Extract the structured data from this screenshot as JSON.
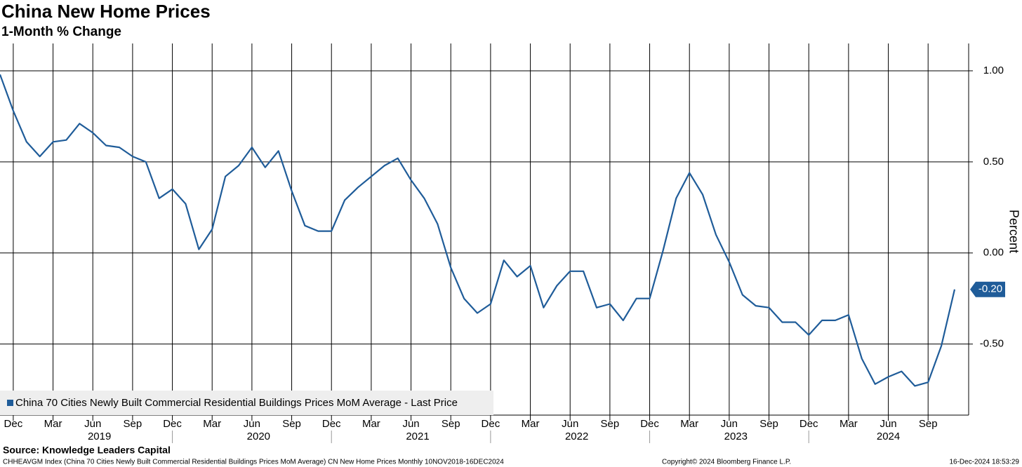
{
  "chart_data": {
    "type": "line",
    "title": "China New Home Prices",
    "subtitle": "1-Month % Change",
    "y_axis_label": "Percent",
    "source": "Source: Knowledge Leaders Capital",
    "footer_left": "CHHEAVGM Index (China 70 Cities Newly Built Commercial Residential Buildings Prices MoM Average) CN New Home Prices  Monthly 10NOV2018-16DEC2024",
    "footer_center": "Copyright© 2024 Bloomberg Finance L.P.",
    "footer_right": "16-Dec-2024 18:53:29",
    "last_label": "-0.20",
    "x": [
      "2018-11",
      "2018-12",
      "2019-01",
      "2019-02",
      "2019-03",
      "2019-04",
      "2019-05",
      "2019-06",
      "2019-07",
      "2019-08",
      "2019-09",
      "2019-10",
      "2019-11",
      "2019-12",
      "2020-01",
      "2020-02",
      "2020-03",
      "2020-04",
      "2020-05",
      "2020-06",
      "2020-07",
      "2020-08",
      "2020-09",
      "2020-10",
      "2020-11",
      "2020-12",
      "2021-01",
      "2021-02",
      "2021-03",
      "2021-04",
      "2021-05",
      "2021-06",
      "2021-07",
      "2021-08",
      "2021-09",
      "2021-10",
      "2021-11",
      "2021-12",
      "2022-01",
      "2022-02",
      "2022-03",
      "2022-04",
      "2022-05",
      "2022-06",
      "2022-07",
      "2022-08",
      "2022-09",
      "2022-10",
      "2022-11",
      "2022-12",
      "2023-01",
      "2023-02",
      "2023-03",
      "2023-04",
      "2023-05",
      "2023-06",
      "2023-07",
      "2023-08",
      "2023-09",
      "2023-10",
      "2023-11",
      "2023-12",
      "2024-01",
      "2024-02",
      "2024-03",
      "2024-04",
      "2024-05",
      "2024-06",
      "2024-07",
      "2024-08",
      "2024-09",
      "2024-10",
      "2024-11"
    ],
    "series": [
      {
        "name": "China 70 Cities Newly Built Commercial Residential Buildings Prices MoM Average - Last Price",
        "color": "#1f5c99",
        "values": [
          0.98,
          0.78,
          0.61,
          0.53,
          0.61,
          0.62,
          0.71,
          0.66,
          0.59,
          0.58,
          0.53,
          0.5,
          0.3,
          0.35,
          0.27,
          0.02,
          0.13,
          0.42,
          0.48,
          0.58,
          0.47,
          0.56,
          0.34,
          0.15,
          0.12,
          0.12,
          0.29,
          0.36,
          0.42,
          0.48,
          0.52,
          0.4,
          0.3,
          0.16,
          -0.08,
          -0.25,
          -0.33,
          -0.28,
          -0.04,
          -0.13,
          -0.07,
          -0.3,
          -0.18,
          -0.1,
          -0.1,
          -0.3,
          -0.28,
          -0.37,
          -0.25,
          -0.25,
          0.01,
          0.3,
          0.44,
          0.32,
          0.1,
          -0.05,
          -0.23,
          -0.29,
          -0.3,
          -0.38,
          -0.38,
          -0.45,
          -0.37,
          -0.37,
          -0.34,
          -0.58,
          -0.72,
          -0.68,
          -0.65,
          -0.73,
          -0.71,
          -0.51,
          -0.2
        ]
      }
    ],
    "xticks": [
      {
        "value": "2018-12",
        "label": "Dec"
      },
      {
        "value": "2019-03",
        "label": "Mar"
      },
      {
        "value": "2019-06",
        "label": "Jun"
      },
      {
        "value": "2019-09",
        "label": "Sep"
      },
      {
        "value": "2019-12",
        "label": "Dec"
      },
      {
        "value": "2020-03",
        "label": "Mar"
      },
      {
        "value": "2020-06",
        "label": "Jun"
      },
      {
        "value": "2020-09",
        "label": "Sep"
      },
      {
        "value": "2020-12",
        "label": "Dec"
      },
      {
        "value": "2021-03",
        "label": "Mar"
      },
      {
        "value": "2021-06",
        "label": "Jun"
      },
      {
        "value": "2021-09",
        "label": "Sep"
      },
      {
        "value": "2021-12",
        "label": "Dec"
      },
      {
        "value": "2022-03",
        "label": "Mar"
      },
      {
        "value": "2022-06",
        "label": "Jun"
      },
      {
        "value": "2022-09",
        "label": "Sep"
      },
      {
        "value": "2022-12",
        "label": "Dec"
      },
      {
        "value": "2023-03",
        "label": "Mar"
      },
      {
        "value": "2023-06",
        "label": "Jun"
      },
      {
        "value": "2023-09",
        "label": "Sep"
      },
      {
        "value": "2023-12",
        "label": "Dec"
      },
      {
        "value": "2024-03",
        "label": "Mar"
      },
      {
        "value": "2024-06",
        "label": "Jun"
      },
      {
        "value": "2024-09",
        "label": "Sep"
      }
    ],
    "years": [
      "2019",
      "2020",
      "2021",
      "2022",
      "2023",
      "2024"
    ],
    "ylim": [
      -0.89,
      1.15
    ],
    "yticks": [
      {
        "value": 1,
        "label": "1.00"
      },
      {
        "value": 0.5,
        "label": "0.50"
      },
      {
        "value": 0,
        "label": "0.00"
      },
      {
        "value": -0.5,
        "label": "-0.50"
      }
    ],
    "grid": true
  }
}
